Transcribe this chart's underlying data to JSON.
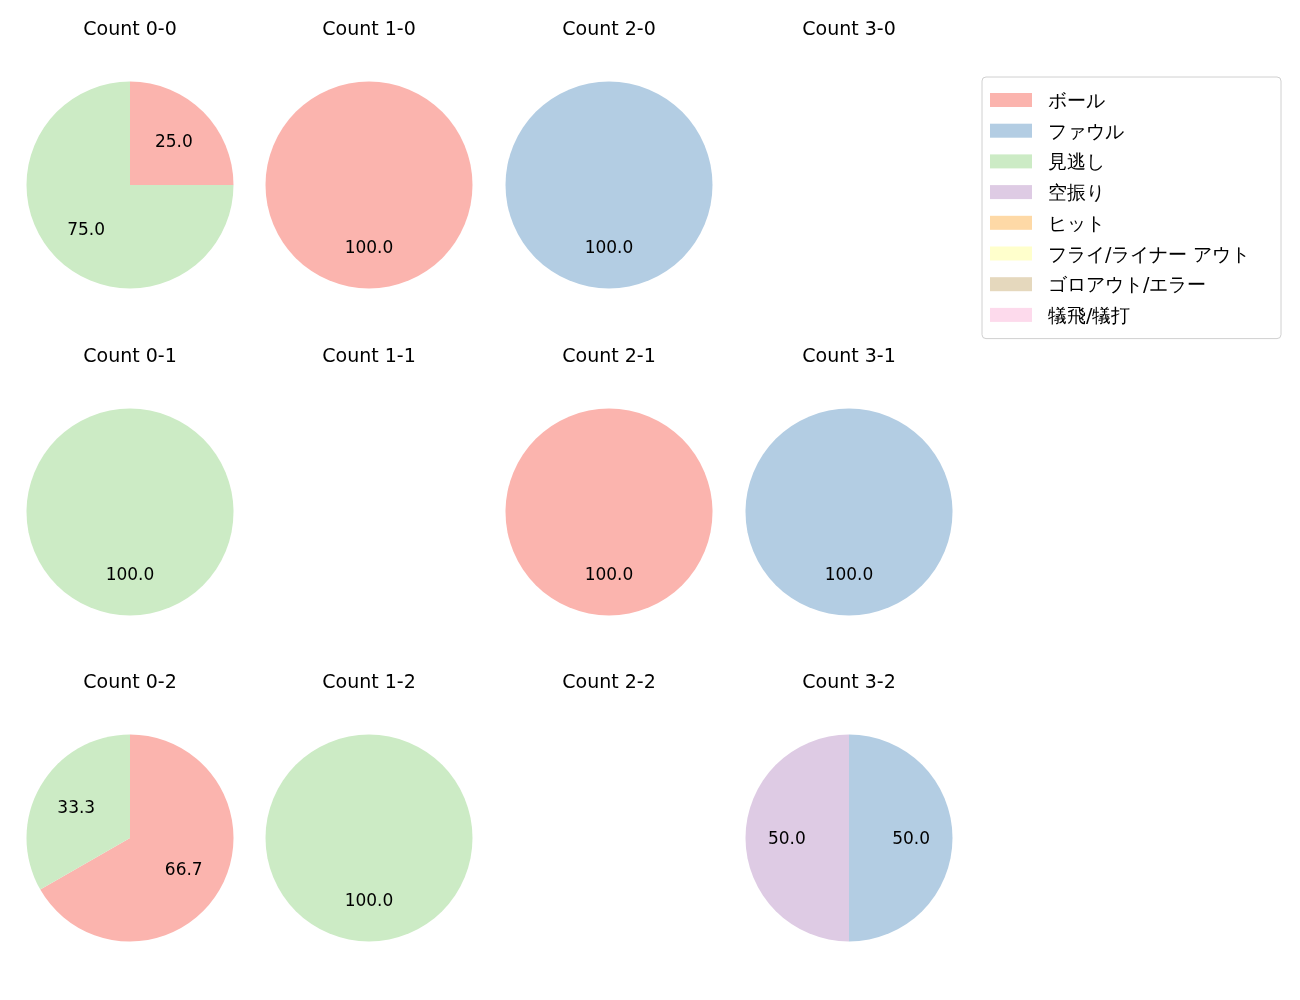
{
  "chart_data": [
    {
      "type": "pie",
      "title": "Count 0-0",
      "categories": [
        "ボール",
        "ファウル",
        "見逃し",
        "空振り",
        "ヒット",
        "フライ/ライナー アウト",
        "ゴロアウト/エラー",
        "犠飛/犠打"
      ],
      "values": [
        25,
        0,
        75,
        0,
        0,
        0,
        0,
        0
      ],
      "colors": [
        "#fbb4ae",
        "#b3cde3",
        "#ccebc5",
        "#decbe4",
        "#fed9a6",
        "#ffffcc",
        "#e5d8bd",
        "#fddaec"
      ],
      "value_labels": [
        "25.0",
        null,
        "75.0",
        null,
        null,
        null,
        null,
        null
      ],
      "legend": "right"
    },
    {
      "type": "pie",
      "title": "Count 1-0",
      "values": [
        100
      ],
      "colors": [
        "#fbb4ae"
      ],
      "value_labels": [
        "100.0"
      ]
    },
    {
      "type": "pie",
      "title": "Count 2-0",
      "values": [
        100
      ],
      "colors": [
        "#b3cde3"
      ],
      "value_labels": [
        "100.0"
      ]
    },
    {
      "type": "pie",
      "title": "Count 3-0"
    },
    {
      "type": "pie",
      "title": "Count 0-1",
      "values": [
        100
      ],
      "colors": [
        "#ccebc5"
      ],
      "value_labels": [
        "100.0"
      ]
    },
    {
      "type": "pie",
      "title": "Count 1-1"
    },
    {
      "type": "pie",
      "title": "Count 2-1",
      "values": [
        100
      ],
      "colors": [
        "#fbb4ae"
      ],
      "value_labels": [
        "100.0"
      ]
    },
    {
      "type": "pie",
      "title": "Count 3-1",
      "values": [
        100
      ],
      "colors": [
        "#b3cde3"
      ],
      "value_labels": [
        "100.0"
      ]
    },
    {
      "type": "pie",
      "title": "Count 0-2",
      "values": [
        66.7,
        33.3
      ],
      "colors": [
        "#fbb4ae",
        "#ccebc5"
      ],
      "value_labels": [
        "66.7",
        "33.3"
      ]
    },
    {
      "type": "pie",
      "title": "Count 1-2",
      "values": [
        100
      ],
      "colors": [
        "#ccebc5"
      ],
      "value_labels": [
        "100.0"
      ]
    },
    {
      "type": "pie",
      "title": "Count 2-2"
    },
    {
      "type": "pie",
      "title": "Count 3-2",
      "values": [
        50,
        50
      ],
      "colors": [
        "#b3cde3",
        "#decbe4"
      ],
      "value_labels": [
        "50.0",
        "50.0"
      ]
    }
  ]
}
